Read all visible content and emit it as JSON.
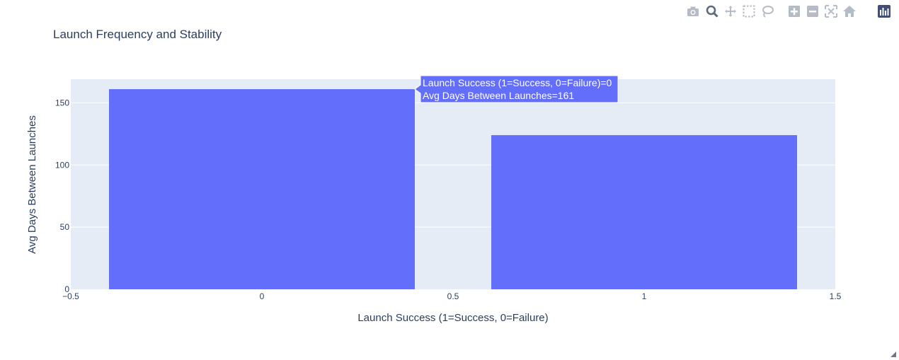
{
  "chart_data": {
    "type": "bar",
    "title": "Launch Frequency and Stability",
    "xlabel": "Launch Success (1=Success, 0=Failure)",
    "ylabel": "Avg Days Between Launches",
    "x": [
      0,
      1
    ],
    "values": [
      161,
      124
    ],
    "xlim": [
      -0.5,
      1.5
    ],
    "ylim": [
      0,
      169
    ],
    "xticks": [
      -0.5,
      0,
      0.5,
      1,
      1.5
    ],
    "xtick_labels": [
      "−0.5",
      "0",
      "0.5",
      "1",
      "1.5"
    ],
    "yticks": [
      0,
      50,
      100,
      150
    ],
    "ytick_labels": [
      "0",
      "50",
      "100",
      "150"
    ],
    "bar_color": "#636efa",
    "plot_bg": "#e5ecf6",
    "grid": true,
    "hover": {
      "index": 0,
      "lines": [
        "Launch Success (1=Success, 0=Failure)=0",
        "Avg Days Between Launches=161"
      ]
    }
  },
  "modebar": {
    "buttons": [
      "camera-icon",
      "zoom-icon",
      "pan-icon",
      "box-select-icon",
      "lasso-icon",
      "zoom-in-icon",
      "zoom-out-icon",
      "autoscale-icon",
      "reset-axes-icon",
      "plotly-logo-icon"
    ]
  }
}
